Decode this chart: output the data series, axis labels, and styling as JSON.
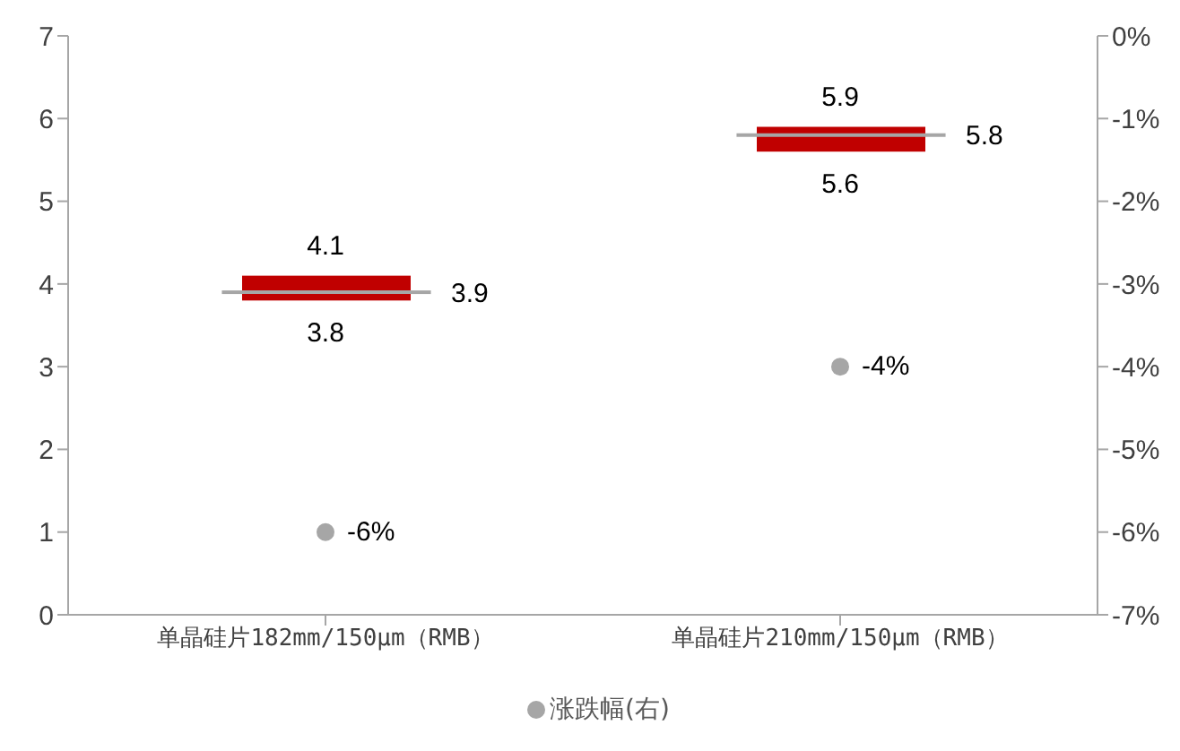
{
  "chart_data": {
    "type": "box",
    "categories": [
      "单晶硅片182mm/150μm（RMB）",
      "单晶硅片210mm/150μm（RMB）"
    ],
    "series": [
      {
        "color": "#c00000",
        "boxes": [
          {
            "low": 3.8,
            "q1": 3.8,
            "median": 3.9,
            "q3": 4.1,
            "high": 4.1
          },
          {
            "low": 5.6,
            "q1": 5.6,
            "median": 5.8,
            "q3": 5.9,
            "high": 5.9
          }
        ]
      },
      {
        "type": "scatter",
        "marker": "circle",
        "name": "涨跌幅(右)",
        "axis": "y2",
        "color": "#a6a6a6",
        "values": [
          -6,
          -4
        ],
        "value_labels": [
          "-6%",
          "-4%"
        ]
      }
    ],
    "annotations": [
      {
        "text": "4.1",
        "x": "单晶硅片182mm/150μm（RMB）",
        "y": 4.1
      },
      "3.9",
      {
        "text": "3.8",
        "x": "单晶硅片182mm/150μm（RMB）",
        "y": 3.8
      },
      {
        "text": "5.9",
        "x": "单晶硅片210mm/150μm（RMB）",
        "y": 5.9
      },
      "5.8",
      {
        "text": "5.6",
        "x": "单晶硅片210mm/150μm（RMB）",
        "y": 5.6
      }
    ],
    "ylim": [
      0,
      7
    ],
    "yticks": [
      0,
      1,
      2,
      3,
      4,
      5,
      6,
      7
    ],
    "y2lim": [
      -7,
      0
    ],
    "y2ticks": [
      {
        "value": -7,
        "label": "-7%"
      },
      {
        "value": -6,
        "label": "-6%"
      },
      {
        "value": -5,
        "label": "-5%"
      },
      {
        "value": -4,
        "label": "-4%"
      },
      {
        "value": -3,
        "label": "-3%"
      },
      {
        "value": -2,
        "label": "-2%"
      },
      {
        "value": -1,
        "label": "-1%"
      },
      {
        "value": 0,
        "label": "0%"
      }
    ],
    "legend": "bottom"
  }
}
